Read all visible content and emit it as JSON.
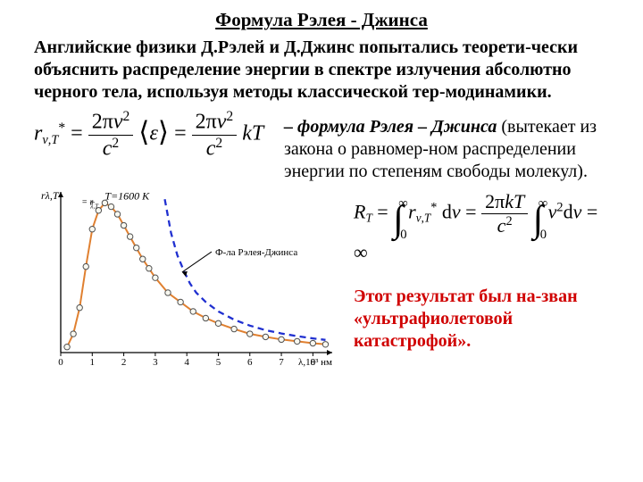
{
  "title": "Формула Рэлея - Джинса",
  "intro": "Английские физики Д.Рэлей и Д.Джинс попытались теорети-чески объяснить распределение энергии в спектре излучения абсолютно черного тела, используя методы классической тер-модинамики.",
  "formula1_name": "– формула Рэлея – Джинса",
  "formula1_tail": "(вытекает из закона о равномер-ном распределении энергии по степеням свободы молекул).",
  "catastrophe": "Этот результат был на-зван «ультрафиолетовой катастрофой».",
  "chart": {
    "temp_label": "T=1600 K",
    "rj_label": "Ф-ла Рэлея-Джинса",
    "yaxis_label": "rλ,T",
    "xaxis_label": "λ,10³ нм",
    "xlim": [
      0,
      8.5
    ],
    "curve_color": "#e08030",
    "rj_color": "#2030d0",
    "point_fill": "#f8f8f0",
    "grid_color": "#808080",
    "experimental_x": [
      0.2,
      0.4,
      0.6,
      0.8,
      1.0,
      1.2,
      1.4,
      1.6,
      1.8,
      2.0,
      2.2,
      2.4,
      2.6,
      2.8,
      3.0,
      3.4,
      3.8,
      4.2,
      4.6,
      5.0,
      5.5,
      6.0,
      6.5,
      7.0,
      7.5,
      8.0,
      8.4
    ],
    "experimental_y": [
      0.15,
      0.5,
      1.2,
      2.3,
      3.3,
      3.8,
      4.0,
      3.9,
      3.7,
      3.4,
      3.1,
      2.8,
      2.5,
      2.25,
      2.0,
      1.6,
      1.35,
      1.1,
      0.92,
      0.78,
      0.63,
      0.5,
      0.42,
      0.35,
      0.3,
      0.25,
      0.22
    ],
    "rj_x": [
      3.3,
      3.5,
      3.7,
      3.9,
      4.1,
      4.3,
      4.6,
      5.0,
      5.5,
      6.0,
      6.5,
      7.0,
      7.5,
      8.0,
      8.4
    ],
    "rj_y": [
      4.1,
      3.2,
      2.6,
      2.2,
      1.85,
      1.6,
      1.35,
      1.1,
      0.88,
      0.72,
      0.6,
      0.51,
      0.44,
      0.38,
      0.34
    ]
  },
  "colors": {
    "red": "#d00000"
  }
}
